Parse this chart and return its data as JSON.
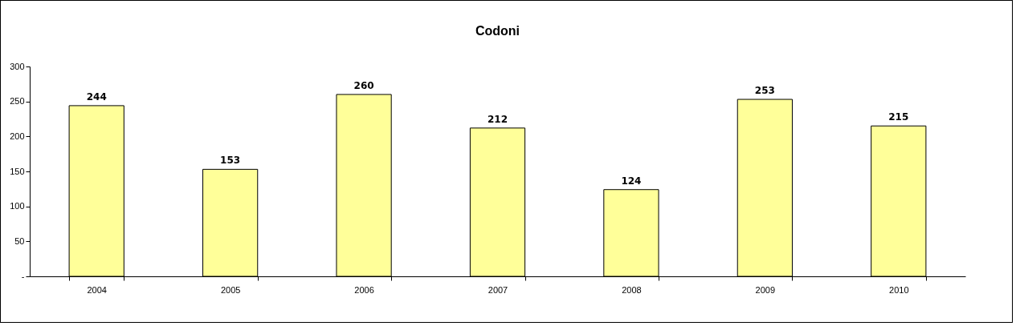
{
  "chart_data": {
    "type": "bar",
    "title": "Codoni",
    "categories": [
      "2004",
      "2005",
      "2006",
      "2007",
      "2008",
      "2009",
      "2010"
    ],
    "values": [
      244,
      153,
      260,
      212,
      124,
      253,
      215
    ],
    "color": "#ffff99",
    "ylim": [
      0,
      300
    ],
    "yticks": [
      {
        "value": 0,
        "label": "-"
      },
      50,
      100,
      150,
      200,
      250,
      300
    ],
    "grid": false,
    "data_labels": true
  }
}
